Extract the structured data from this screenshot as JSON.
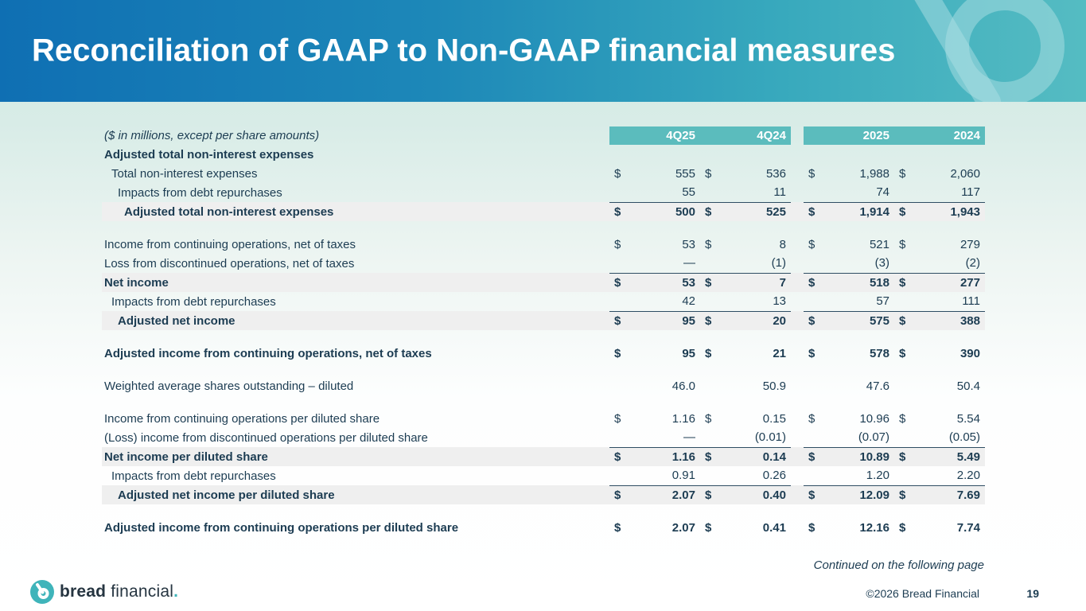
{
  "slide": {
    "title": "Reconciliation of GAAP to Non-GAAP financial measures",
    "continued_note": "Continued on the following page",
    "copyright": "©2026 Bread Financial",
    "page_number": "19"
  },
  "brand": {
    "bold": "bread",
    "regular": " financial",
    "period": "."
  },
  "table": {
    "units_note": "($ in millions, except per share amounts)",
    "column_headers": [
      "4Q25",
      "4Q24",
      "2025",
      "2024"
    ],
    "rows": [
      {
        "label": "Adjusted total non-interest expenses",
        "bold": true,
        "indent": 0,
        "dollars": [
          "",
          "",
          "",
          ""
        ],
        "values": [
          "",
          "",
          "",
          ""
        ]
      },
      {
        "label": "Total non-interest expenses",
        "indent": 1,
        "dollars": [
          "$",
          "$",
          "$",
          "$"
        ],
        "values": [
          "555",
          "536",
          "1,988",
          "2,060"
        ]
      },
      {
        "label": "Impacts from debt repurchases",
        "indent": 2,
        "underline": true,
        "dollars": [
          "",
          "",
          "",
          ""
        ],
        "values": [
          "55",
          "11",
          "74",
          "117"
        ]
      },
      {
        "label": "Adjusted total non-interest expenses",
        "bold": true,
        "shaded": true,
        "indent": 3,
        "dollars": [
          "$",
          "$",
          "$",
          "$"
        ],
        "values": [
          "500",
          "525",
          "1,914",
          "1,943"
        ]
      },
      {
        "spacer": true
      },
      {
        "label": "Income from continuing operations, net of taxes",
        "indent": 0,
        "dollars": [
          "$",
          "$",
          "$",
          "$"
        ],
        "values": [
          "53",
          "8",
          "521",
          "279"
        ]
      },
      {
        "label": "Loss from discontinued operations, net of taxes",
        "indent": 0,
        "underline": true,
        "dollars": [
          "",
          "",
          "",
          ""
        ],
        "values": [
          "—",
          "(1)",
          "(3)",
          "(2)"
        ]
      },
      {
        "label": "Net income",
        "bold": true,
        "shaded": true,
        "indent": 0,
        "dollars": [
          "$",
          "$",
          "$",
          "$"
        ],
        "values": [
          "53",
          "7",
          "518",
          "277"
        ]
      },
      {
        "label": "Impacts from debt repurchases",
        "indent": 1,
        "underline": true,
        "dollars": [
          "",
          "",
          "",
          ""
        ],
        "values": [
          "42",
          "13",
          "57",
          "111"
        ]
      },
      {
        "label": "Adjusted net income",
        "bold": true,
        "shaded": true,
        "indent": 2,
        "dollars": [
          "$",
          "$",
          "$",
          "$"
        ],
        "values": [
          "95",
          "20",
          "575",
          "388"
        ]
      },
      {
        "spacer": true
      },
      {
        "label": "Adjusted income from continuing operations, net of taxes",
        "bold": true,
        "indent": 0,
        "dollars": [
          "$",
          "$",
          "$",
          "$"
        ],
        "values": [
          "95",
          "21",
          "578",
          "390"
        ]
      },
      {
        "spacer": true
      },
      {
        "label": "Weighted average shares outstanding – diluted",
        "indent": 0,
        "dollars": [
          "",
          "",
          "",
          ""
        ],
        "values": [
          "46.0",
          "50.9",
          "47.6",
          "50.4"
        ]
      },
      {
        "spacer": true
      },
      {
        "label": "Income from continuing operations per diluted share",
        "indent": 0,
        "dollars": [
          "$",
          "$",
          "$",
          "$"
        ],
        "values": [
          "1.16",
          "0.15",
          "10.96",
          "5.54"
        ]
      },
      {
        "label": "(Loss) income from discontinued operations per diluted share",
        "indent": 0,
        "underline": true,
        "dollars": [
          "",
          "",
          "",
          ""
        ],
        "values": [
          "—",
          "(0.01)",
          "(0.07)",
          "(0.05)"
        ]
      },
      {
        "label": "Net income per diluted share",
        "bold": true,
        "shaded": true,
        "indent": 0,
        "dollars": [
          "$",
          "$",
          "$",
          "$"
        ],
        "values": [
          "1.16",
          "0.14",
          "10.89",
          "5.49"
        ]
      },
      {
        "label": "Impacts from debt repurchases",
        "indent": 1,
        "underline": true,
        "dollars": [
          "",
          "",
          "",
          ""
        ],
        "values": [
          "0.91",
          "0.26",
          "1.20",
          "2.20"
        ]
      },
      {
        "label": "Adjusted net income per diluted share",
        "bold": true,
        "shaded": true,
        "indent": 2,
        "dollars": [
          "$",
          "$",
          "$",
          "$"
        ],
        "values": [
          "2.07",
          "0.40",
          "12.09",
          "7.69"
        ]
      },
      {
        "spacer": true
      },
      {
        "label": "Adjusted income from continuing operations per diluted share",
        "bold": true,
        "indent": 0,
        "dollars": [
          "$",
          "$",
          "$",
          "$"
        ],
        "values": [
          "2.07",
          "0.41",
          "12.16",
          "7.74"
        ]
      }
    ]
  },
  "colors": {
    "banner_blue": "#0f6fb3",
    "banner_teal": "#55bcc2",
    "header_cell_bg": "#5bbcbd",
    "shaded_row_bg": "#efefef",
    "text": "#1c3c52",
    "logo_teal": "#3fb4ba"
  }
}
